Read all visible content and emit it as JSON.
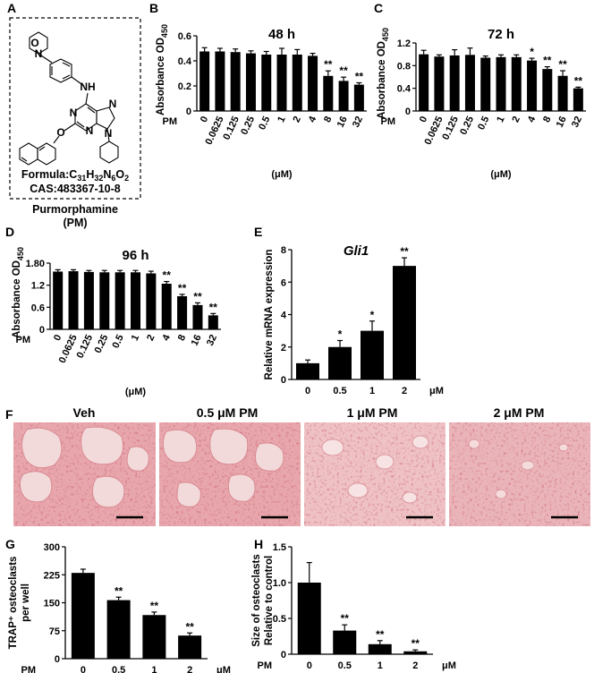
{
  "panel_A": {
    "letter": "A",
    "formula_prefix": "Formula:C",
    "formula_parts": [
      "31",
      "H",
      "32",
      "N",
      "6",
      "O",
      "2"
    ],
    "cas": "CAS:483367-10-8",
    "name": "Purmorphamine",
    "abbrev": "(PM)",
    "atom_labels": [
      "O",
      "N",
      "NH",
      "N",
      "N",
      "N",
      "N",
      "O"
    ]
  },
  "panel_F": {
    "letter": "F",
    "titles": [
      "Veh",
      "0.5 μM PM",
      "1 μM PM",
      "2 μM PM"
    ]
  },
  "chart_data": [
    {
      "id": "B",
      "letter": "B",
      "type": "bar",
      "title": "48 h",
      "ylabel_main": "Absorbance OD",
      "ylabel_sub": "450",
      "row_label": "PM",
      "xlabel": "(μM)",
      "categories": [
        "0",
        "0.0625",
        "0.125",
        "0.25",
        "0.5",
        "1",
        "2",
        "4",
        "8",
        "16",
        "32"
      ],
      "values": [
        0.475,
        0.475,
        0.47,
        0.46,
        0.45,
        0.45,
        0.45,
        0.44,
        0.28,
        0.24,
        0.21
      ],
      "errors": [
        0.03,
        0.025,
        0.025,
        0.02,
        0.025,
        0.05,
        0.04,
        0.02,
        0.04,
        0.03,
        0.015
      ],
      "significance": [
        "",
        "",
        "",
        "",
        "",
        "",
        "",
        "",
        "**",
        "**",
        "**"
      ],
      "yticks": [
        "0",
        "0.2",
        "0.4",
        "0.6"
      ],
      "ylim": [
        0,
        0.6
      ]
    },
    {
      "id": "C",
      "letter": "C",
      "type": "bar",
      "title": "72 h",
      "ylabel_main": "Absorbance OD",
      "ylabel_sub": "450",
      "row_label": "PM",
      "xlabel": "(μM)",
      "categories": [
        "0",
        "0.0625",
        "0.125",
        "0.25",
        "0.5",
        "1",
        "2",
        "4",
        "8",
        "16",
        "32"
      ],
      "values": [
        1.0,
        0.96,
        0.98,
        0.99,
        0.94,
        0.95,
        0.95,
        0.89,
        0.74,
        0.62,
        0.4
      ],
      "errors": [
        0.07,
        0.03,
        0.1,
        0.12,
        0.03,
        0.04,
        0.04,
        0.04,
        0.04,
        0.09,
        0.02
      ],
      "significance": [
        "",
        "",
        "",
        "",
        "",
        "",
        "",
        "*",
        "**",
        "**",
        "**"
      ],
      "yticks": [
        "0",
        "0.4",
        "0.8",
        "1.2"
      ],
      "ylim": [
        0,
        1.2
      ]
    },
    {
      "id": "D",
      "letter": "D",
      "type": "bar",
      "title": "96 h",
      "ylabel_main": "Absorbance OD",
      "ylabel_sub": "450",
      "row_label": "PM",
      "xlabel": "(μM)",
      "categories": [
        "0",
        "0.0625",
        "0.125",
        "0.25",
        "0.5",
        "1",
        "2",
        "4",
        "8",
        "16",
        "32"
      ],
      "values": [
        1.57,
        1.58,
        1.56,
        1.55,
        1.55,
        1.55,
        1.52,
        1.24,
        0.9,
        0.66,
        0.38
      ],
      "errors": [
        0.05,
        0.04,
        0.04,
        0.05,
        0.05,
        0.05,
        0.06,
        0.06,
        0.05,
        0.06,
        0.05
      ],
      "significance": [
        "",
        "",
        "",
        "",
        "",
        "",
        "",
        "**",
        "**",
        "**",
        "**"
      ],
      "yticks": [
        "0",
        "0.6",
        "1.2",
        "1.80"
      ],
      "ylim": [
        0,
        1.8
      ]
    },
    {
      "id": "E",
      "letter": "E",
      "type": "bar",
      "title": "Gli1",
      "ylabel_main": "Relative mRNA expression",
      "row_label": "",
      "xlabel": "μM",
      "categories": [
        "0",
        "0.5",
        "1",
        "2"
      ],
      "values": [
        1.0,
        2.0,
        3.0,
        7.0
      ],
      "errors": [
        0.2,
        0.4,
        0.6,
        0.5
      ],
      "significance": [
        "",
        "*",
        "*",
        "**"
      ],
      "yticks": [
        "0",
        "2",
        "4",
        "6",
        "8"
      ],
      "ylim": [
        0,
        8
      ]
    },
    {
      "id": "G",
      "letter": "G",
      "type": "bar",
      "title": "",
      "ylabel_lines": [
        "TRAP⁺ osteoclasts",
        "per well"
      ],
      "row_label": "PM",
      "xlabel": "μM",
      "categories": [
        "0",
        "0.5",
        "1",
        "2"
      ],
      "values": [
        230,
        157,
        117,
        62
      ],
      "errors": [
        10,
        8,
        8,
        7
      ],
      "significance": [
        "",
        "**",
        "**",
        "**"
      ],
      "yticks": [
        "0",
        "75",
        "150",
        "225",
        "300"
      ],
      "ylim": [
        0,
        300
      ]
    },
    {
      "id": "H",
      "letter": "H",
      "type": "bar",
      "title": "",
      "ylabel_lines": [
        "Size of osteoclasts",
        "Relative to control"
      ],
      "row_label": "PM",
      "xlabel": "μM",
      "categories": [
        "0",
        "0.5",
        "1",
        "2"
      ],
      "values": [
        1.0,
        0.33,
        0.14,
        0.04
      ],
      "errors": [
        0.28,
        0.08,
        0.05,
        0.02
      ],
      "significance": [
        "",
        "**",
        "**",
        "**"
      ],
      "yticks": [
        "0",
        "0.5",
        "1.0",
        "1.5"
      ],
      "ylim": [
        0,
        1.5
      ]
    }
  ]
}
